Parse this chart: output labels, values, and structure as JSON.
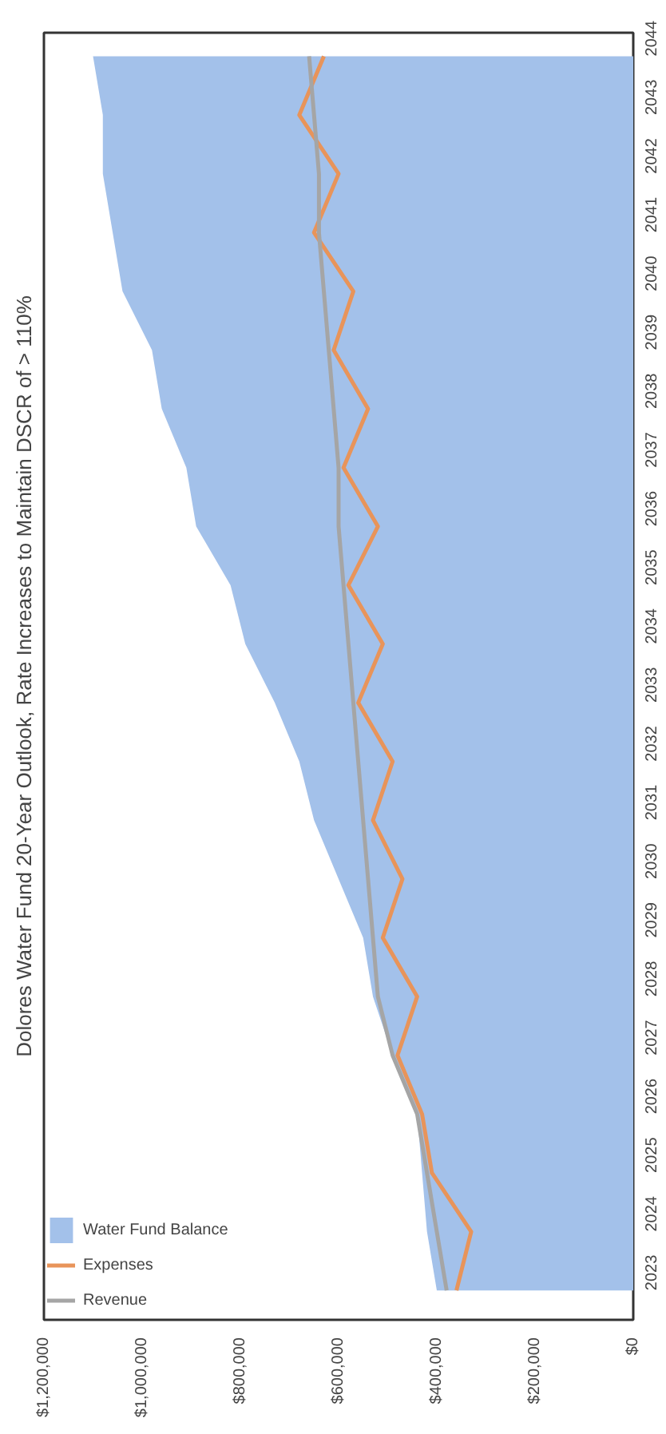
{
  "chart_data": {
    "type": "line",
    "title": "Dolores Water Fund 20-Year Outlook, Rate Increases to Maintain DSCR of > 110%",
    "categories": [
      "2044",
      "2043",
      "2042",
      "2041",
      "2040",
      "2039",
      "2038",
      "2037",
      "2036",
      "2035",
      "2034",
      "2033",
      "2032",
      "2031",
      "2030",
      "2029",
      "2028",
      "2027",
      "2026",
      "2025",
      "2024",
      "2023"
    ],
    "series": [
      {
        "name": "Water Fund Balance",
        "type": "area",
        "color": "#a3c1ea",
        "values": [
          1100000,
          1080000,
          1080000,
          1060000,
          1040000,
          980000,
          960000,
          910000,
          890000,
          820000,
          790000,
          730000,
          680000,
          650000,
          600000,
          550000,
          530000,
          490000,
          440000,
          430000,
          420000,
          400000
        ]
      },
      {
        "name": "Expenses",
        "color": "#e8945a",
        "values": [
          630000,
          680000,
          600000,
          650000,
          570000,
          610000,
          540000,
          590000,
          520000,
          580000,
          510000,
          560000,
          490000,
          530000,
          470000,
          510000,
          440000,
          480000,
          430000,
          410000,
          330000,
          360000
        ]
      },
      {
        "name": "Revenue",
        "color": "#a5a5a5",
        "values": [
          660000,
          650000,
          640000,
          640000,
          630000,
          620000,
          610000,
          600000,
          600000,
          590000,
          580000,
          570000,
          560000,
          550000,
          540000,
          530000,
          520000,
          490000,
          440000,
          420000,
          400000,
          380000
        ]
      }
    ],
    "xlim": [
      1200000,
      0
    ],
    "xticks": [
      {
        "value": 0,
        "label": "$0"
      },
      {
        "value": 200000,
        "label": "$200,000"
      },
      {
        "value": 400000,
        "label": "$400,000"
      },
      {
        "value": 600000,
        "label": "$600,000"
      },
      {
        "value": 800000,
        "label": "$800,000"
      },
      {
        "value": 1000000,
        "label": "$1,000,000"
      },
      {
        "value": 1200000,
        "label": "$1,200,000"
      }
    ],
    "orientation": "horizontal",
    "legend": "bottom left",
    "grid": false
  }
}
